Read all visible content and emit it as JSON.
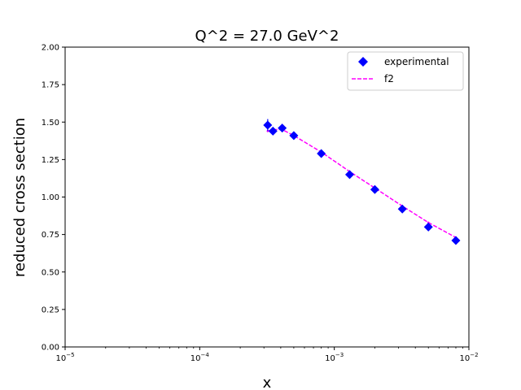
{
  "chart_data": {
    "type": "scatter",
    "title": "Q^2 = 27.0 GeV^2",
    "xlabel": "x",
    "ylabel": "reduced cross section",
    "xscale": "log",
    "xlim": [
      1e-05,
      0.01
    ],
    "ylim": [
      0.0,
      2.0
    ],
    "xticks": [
      {
        "value": 1e-05,
        "base": "10",
        "exp": "−5"
      },
      {
        "value": 0.0001,
        "base": "10",
        "exp": "−4"
      },
      {
        "value": 0.001,
        "base": "10",
        "exp": "−3"
      },
      {
        "value": 0.01,
        "base": "10",
        "exp": "−2"
      }
    ],
    "yticks": [
      "0.00",
      "0.25",
      "0.50",
      "0.75",
      "1.00",
      "1.25",
      "1.50",
      "1.75",
      "2.00"
    ],
    "grid": false,
    "legend": {
      "placement": "top-right",
      "entries": [
        "experimental",
        "f2"
      ]
    },
    "series": [
      {
        "name": "experimental",
        "kind": "scatter",
        "marker": "diamond",
        "color": "#0000ff",
        "x": [
          0.00032,
          0.00035,
          0.00041,
          0.0005,
          0.0008,
          0.0013,
          0.002,
          0.0032,
          0.005,
          0.008
        ],
        "y": [
          1.48,
          1.44,
          1.46,
          1.41,
          1.29,
          1.15,
          1.05,
          0.92,
          0.8,
          0.71
        ],
        "yerr": [
          0.04,
          0.02,
          0.02,
          0.015,
          0.015,
          0.015,
          0.015,
          0.015,
          0.015,
          0.015
        ]
      },
      {
        "name": "f2",
        "kind": "line",
        "style": "dashed",
        "color": "#ff00ff",
        "x": [
          0.00032,
          0.00035,
          0.00041,
          0.0005,
          0.0008,
          0.0013,
          0.002,
          0.0032,
          0.005,
          0.008
        ],
        "y": [
          1.44,
          1.45,
          1.45,
          1.41,
          1.3,
          1.17,
          1.06,
          0.94,
          0.83,
          0.73
        ]
      }
    ]
  }
}
